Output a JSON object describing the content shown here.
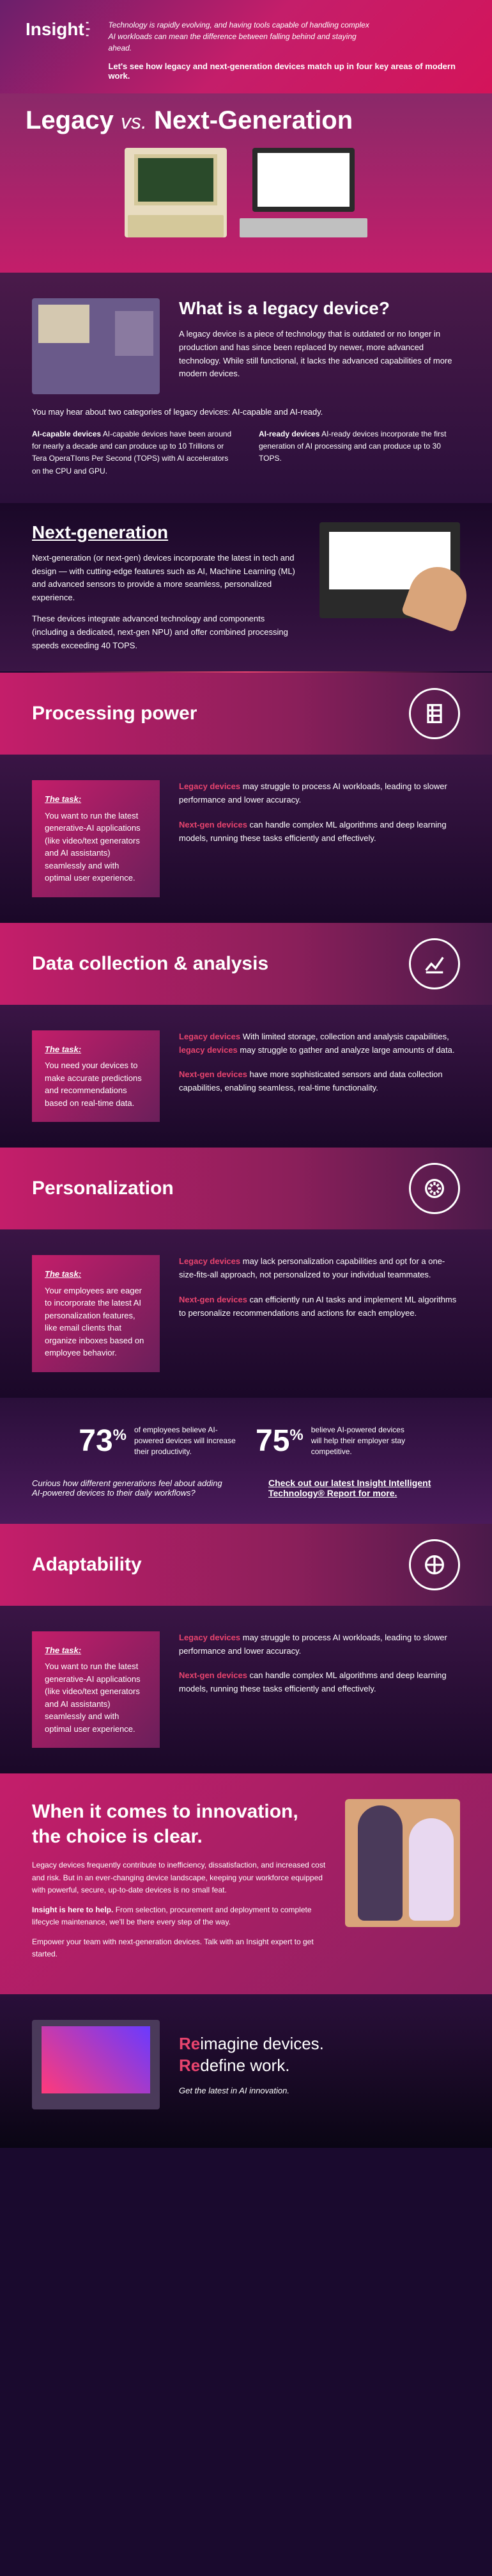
{
  "logo": "Insight",
  "header": {
    "intro": "Technology is rapidly evolving, and having tools capable of handling complex AI workloads can mean the difference between falling behind and staying ahead.",
    "sub": "Let's see how legacy and next-generation devices match up in four key areas of modern work."
  },
  "title": {
    "a": "Legacy",
    "vs": "vs.",
    "b": "Next-Generation"
  },
  "legacy_q": {
    "heading": "What is a legacy device?",
    "body": "A legacy device is a piece of technology that is outdated or no longer in production and has since been replaced by newer, more advanced technology. While still functional, it lacks the advanced capabilities of more modern devices.",
    "note": "You may hear about two categories of legacy devices: AI-capable and AI-ready.",
    "col1": "AI-capable devices have been around for nearly a decade and can produce up to 10 Trillions or Tera OperaTIons Per Second (TOPS) with AI accelerators on the CPU and GPU.",
    "col1_bold": "AI-capable devices",
    "col2": "AI-ready devices incorporate the first generation of AI processing and can produce up to 30 TOPS.",
    "col2_bold": "AI-ready devices"
  },
  "nextgen": {
    "heading": "Next-generation",
    "p1": "Next-generation (or next-gen) devices incorporate the latest in tech and design — with cutting-edge features such as AI, Machine Learning (ML) and advanced sensors to provide a more seamless, personalized experience.",
    "p2": "These devices integrate advanced technology and components (including a dedicated, next-gen NPU) and offer combined processing speeds exceeding 40 TOPS."
  },
  "cats": [
    {
      "title": "Processing power",
      "task": "You want to run the latest generative-AI applications (like video/text generators and AI assistants) seamlessly and with optimal user experience.",
      "legacy": "Legacy devices may struggle to process AI workloads, leading to slower performance and lower accuracy.",
      "ng": "Next-gen devices can handle complex ML algorithms and deep learning models, running these tasks efficiently and effectively."
    },
    {
      "title": "Data collection & analysis",
      "task": "You need your devices to make accurate predictions and recommendations based on real-time data.",
      "legacy": "With limited storage, collection and analysis capabilities, legacy devices may struggle to gather and analyze large amounts of data.",
      "ng": "Next-gen devices have more sophisticated sensors and data collection capabilities, enabling seamless, real-time functionality."
    },
    {
      "title": "Personalization",
      "task": "Your employees are eager to incorporate the latest AI personalization features, like email clients that organize inboxes based on employee behavior.",
      "legacy": "Legacy devices may lack personalization capabilities and opt for a one-size-fits-all approach, not personalized to your individual teammates.",
      "ng": "Next-gen devices can efficiently run AI tasks and implement ML algorithms to personalize recommendations and actions for each employee."
    },
    {
      "title": "Adaptability",
      "task": "You want to run the latest generative-AI applications (like video/text generators and AI assistants) seamlessly and with optimal user experience.",
      "legacy": "Legacy devices may struggle to process AI workloads, leading to slower performance and lower accuracy.",
      "ng": "Next-gen devices can handle complex ML algorithms and deep learning models, running these tasks efficiently and effectively."
    }
  ],
  "stats": {
    "s1_num": "73",
    "s1_pct": "%",
    "s1_txt": "of employees believe AI-powered devices will increase their productivity.",
    "s2_num": "75",
    "s2_pct": "%",
    "s2_txt": "believe AI-powered devices will help their employer stay competitive.",
    "cta_l": "Curious how different generations feel about adding AI-powered devices to their daily workflows?",
    "cta_r": "Check out our latest Insight Intelligent Technology® Report for more."
  },
  "task_label": "The task:",
  "legacy_label": "Legacy devices",
  "ng_label": "Next-gen devices",
  "innov": {
    "h": "When it comes to innovation, the choice is clear.",
    "p1": "Legacy devices frequently contribute to inefficiency, dissatisfaction, and increased cost and risk. But in an ever-changing device landscape, keeping your workforce equipped with powerful, secure, up-to-date devices is no small feat.",
    "p2_bold": "Insight is here to help.",
    "p2": " From selection, procurement and deployment to complete lifecycle maintenance, we'll be there every step of the way.",
    "p3": "Empower your team with next-generation devices. Talk with an Insight expert to get started."
  },
  "ftr": {
    "l1a": "Re",
    "l1b": "imagine devices.",
    "l2a": "Re",
    "l2b": "define work.",
    "tag": "Get the latest in AI innovation."
  },
  "colors": {
    "accent": "#e8446e",
    "magenta": "#c41e6a",
    "purple_dark": "#2a0f3a"
  }
}
